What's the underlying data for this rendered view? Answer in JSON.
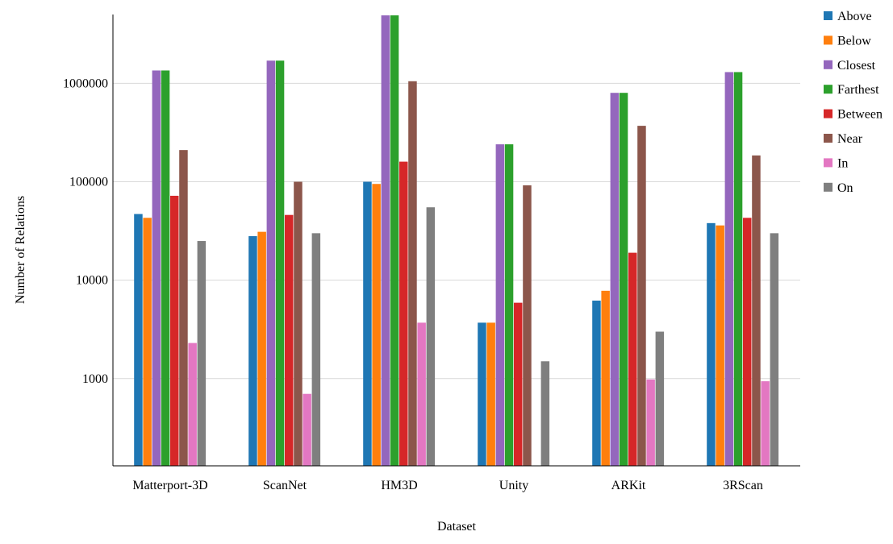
{
  "chart_data": {
    "type": "bar",
    "title": "",
    "xlabel": "Dataset",
    "ylabel": "Number of Relations",
    "y_scale": "log",
    "ylim": [
      130,
      5000000
    ],
    "y_ticks": [
      1000,
      10000,
      100000,
      1000000
    ],
    "y_tick_labels": [
      "1000",
      "10000",
      "100000",
      "1000000"
    ],
    "grid": "horizontal",
    "legend_position": "right",
    "categories": [
      "Matterport-3D",
      "ScanNet",
      "HM3D",
      "Unity",
      "ARKit",
      "3RScan"
    ],
    "series": [
      {
        "name": "Above",
        "color": "#1f77b4",
        "values": [
          47000,
          28000,
          100000,
          3700,
          6200,
          38000
        ]
      },
      {
        "name": "Below",
        "color": "#ff7f0e",
        "values": [
          43000,
          31000,
          95000,
          3700,
          7800,
          36000
        ]
      },
      {
        "name": "Closest",
        "color": "#9467bd",
        "values": [
          1350000,
          1700000,
          4900000,
          240000,
          800000,
          1300000
        ]
      },
      {
        "name": "Farthest",
        "color": "#2ca02c",
        "values": [
          1350000,
          1700000,
          4900000,
          240000,
          800000,
          1300000
        ]
      },
      {
        "name": "Between",
        "color": "#d62728",
        "values": [
          72000,
          46000,
          160000,
          5900,
          19000,
          43000
        ]
      },
      {
        "name": "Near",
        "color": "#8c564b",
        "values": [
          210000,
          100000,
          1050000,
          92000,
          370000,
          185000
        ]
      },
      {
        "name": "In",
        "color": "#e377c2",
        "values": [
          2300,
          700,
          3700,
          130,
          980,
          940
        ]
      },
      {
        "name": "On",
        "color": "#7f7f7f",
        "values": [
          25000,
          30000,
          55000,
          1500,
          3000,
          30000
        ]
      }
    ]
  }
}
